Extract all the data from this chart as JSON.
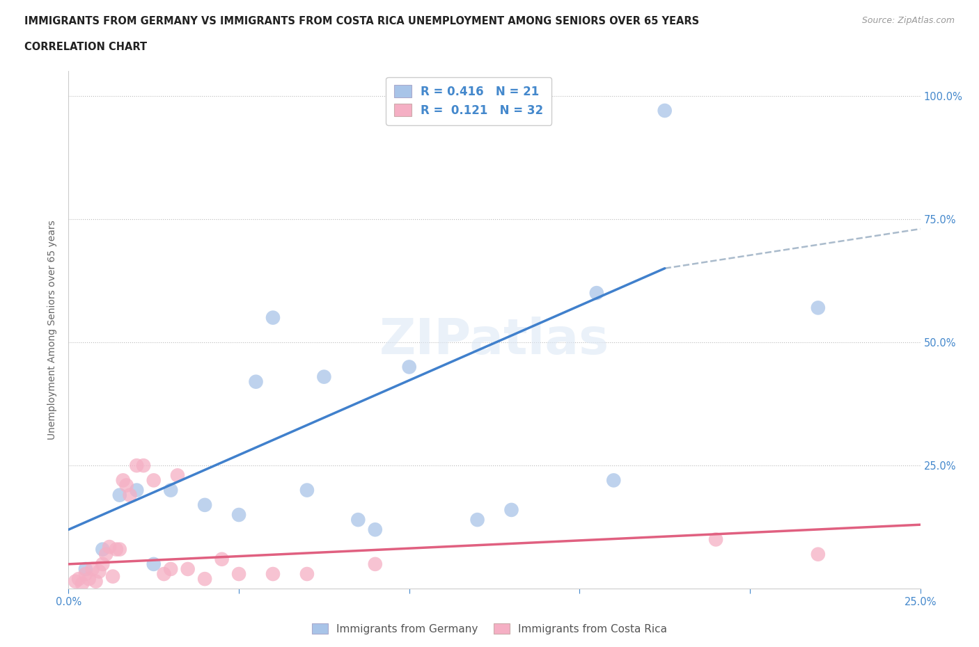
{
  "title_line1": "IMMIGRANTS FROM GERMANY VS IMMIGRANTS FROM COSTA RICA UNEMPLOYMENT AMONG SENIORS OVER 65 YEARS",
  "title_line2": "CORRELATION CHART",
  "source": "Source: ZipAtlas.com",
  "ylabel": "Unemployment Among Seniors over 65 years",
  "germany_label": "Immigrants from Germany",
  "costa_rica_label": "Immigrants from Costa Rica",
  "germany_R": "0.416",
  "germany_N": "21",
  "costa_rica_R": "0.121",
  "costa_rica_N": "32",
  "germany_color": "#a8c4e8",
  "costa_rica_color": "#f5afc4",
  "germany_line_color": "#4080cc",
  "costa_rica_line_color": "#e06080",
  "xlim": [
    0.0,
    0.25
  ],
  "ylim": [
    0.0,
    1.05
  ],
  "germany_x": [
    0.005,
    0.01,
    0.015,
    0.02,
    0.025,
    0.03,
    0.04,
    0.05,
    0.055,
    0.06,
    0.07,
    0.075,
    0.085,
    0.09,
    0.1,
    0.12,
    0.13,
    0.155,
    0.16,
    0.175,
    0.22
  ],
  "germany_y": [
    0.04,
    0.08,
    0.19,
    0.2,
    0.05,
    0.2,
    0.17,
    0.15,
    0.42,
    0.55,
    0.2,
    0.43,
    0.14,
    0.12,
    0.45,
    0.14,
    0.16,
    0.6,
    0.22,
    0.97,
    0.57
  ],
  "costa_rica_x": [
    0.002,
    0.003,
    0.004,
    0.005,
    0.006,
    0.007,
    0.008,
    0.009,
    0.01,
    0.011,
    0.012,
    0.013,
    0.014,
    0.015,
    0.016,
    0.017,
    0.018,
    0.02,
    0.022,
    0.025,
    0.028,
    0.03,
    0.032,
    0.035,
    0.04,
    0.045,
    0.05,
    0.06,
    0.07,
    0.09,
    0.19,
    0.22
  ],
  "costa_rica_y": [
    0.015,
    0.02,
    0.01,
    0.03,
    0.02,
    0.04,
    0.015,
    0.035,
    0.05,
    0.07,
    0.085,
    0.025,
    0.08,
    0.08,
    0.22,
    0.21,
    0.19,
    0.25,
    0.25,
    0.22,
    0.03,
    0.04,
    0.23,
    0.04,
    0.02,
    0.06,
    0.03,
    0.03,
    0.03,
    0.05,
    0.1,
    0.07
  ],
  "germany_regline_x": [
    0.0,
    0.175
  ],
  "germany_regline_y": [
    0.12,
    0.65
  ],
  "germany_dashline_x": [
    0.175,
    0.25
  ],
  "germany_dashline_y": [
    0.65,
    0.73
  ],
  "costa_rica_regline_x": [
    0.0,
    0.25
  ],
  "costa_rica_regline_y": [
    0.05,
    0.13
  ]
}
